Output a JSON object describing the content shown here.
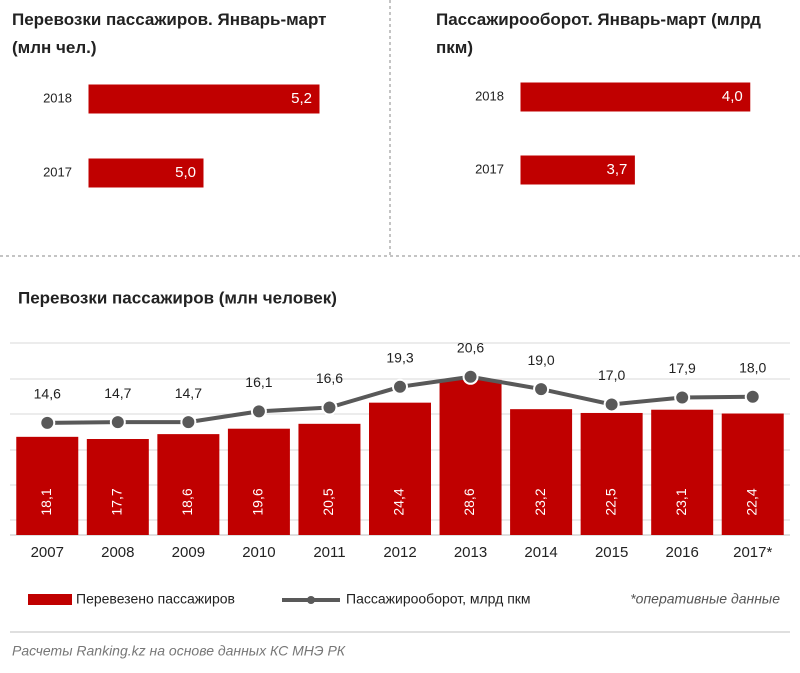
{
  "chart_data": [
    {
      "type": "hbar",
      "title": "Перевозки пассажиров. Январь-март (млн чел.)",
      "categories": [
        "2018",
        "2017"
      ],
      "values": [
        5.2,
        5.0
      ],
      "value_labels": [
        "5,2",
        "5,0"
      ],
      "color": "#c00000",
      "xlim": [
        4.8,
        5.3
      ]
    },
    {
      "type": "hbar",
      "title": "Пассажирооборот. Январь-март (млрд пкм)",
      "categories": [
        "2018",
        "2017"
      ],
      "values": [
        4.0,
        3.7
      ],
      "value_labels": [
        "4,0",
        "3,7"
      ],
      "color": "#c00000",
      "xlim": [
        3.4,
        4.05
      ]
    },
    {
      "type": "combo",
      "title": "Перевозки пассажиров (млн человек)",
      "categories": [
        "2007",
        "2008",
        "2009",
        "2010",
        "2011",
        "2012",
        "2013",
        "2014",
        "2015",
        "2016",
        "2017*"
      ],
      "series": [
        {
          "name": "Перевезено пассажиров",
          "color": "#c00000",
          "values": [
            18.1,
            17.7,
            18.6,
            19.6,
            20.5,
            24.4,
            28.6,
            23.2,
            22.5,
            23.1,
            22.4
          ],
          "value_labels": [
            "18,1",
            "17,7",
            "18,6",
            "19,6",
            "20,5",
            "24,4",
            "28,6",
            "23,2",
            "22,5",
            "23,1",
            "22,4"
          ]
        },
        {
          "name": "Пассажирооборот, млрд пкм",
          "color": "#595959",
          "axis": "y2",
          "values": [
            14.6,
            14.7,
            14.7,
            16.1,
            16.6,
            19.3,
            20.6,
            19.0,
            17.0,
            17.9,
            18.0
          ],
          "value_labels": [
            "14,6",
            "14,7",
            "14,7",
            "16,1",
            "16,6",
            "19,3",
            "20,6",
            "19,0",
            "17,0",
            "17,9",
            "18,0"
          ]
        }
      ],
      "ylim": [
        0,
        35.4
      ],
      "y2lim": [
        0,
        25
      ],
      "note": "*оперативные данные",
      "source": "Расчеты Ranking.kz на основе данных КС МНЭ РК"
    }
  ]
}
